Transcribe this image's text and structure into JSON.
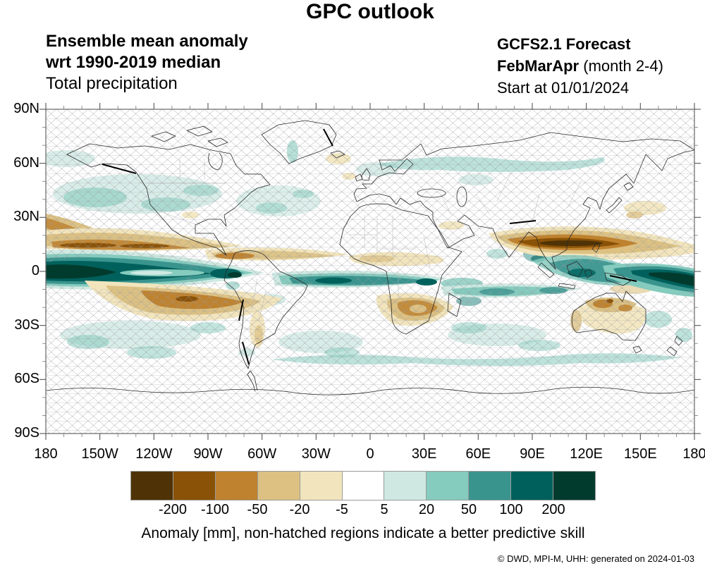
{
  "title": "GPC outlook",
  "subtitle_left": {
    "line1": "Ensemble mean anomaly",
    "line2": "wrt 1990-2019 median",
    "line3": "Total precipitation"
  },
  "subtitle_right": {
    "model": "GCFS2.1 Forecast",
    "season_bold": "FebMarApr",
    "season_rest": " (month 2-4)",
    "start": "Start at 01/01/2024"
  },
  "map": {
    "lat_labels": [
      "90N",
      "60N",
      "30N",
      "0",
      "30S",
      "60S",
      "90S"
    ],
    "lon_labels": [
      "180",
      "150W",
      "120W",
      "90W",
      "60W",
      "30W",
      "0",
      "30E",
      "60E",
      "90E",
      "120E",
      "150E",
      "180"
    ]
  },
  "colorbar": {
    "colors": [
      "#4f3306",
      "#8a5206",
      "#bf822e",
      "#dcc183",
      "#f2e5bd",
      "#ffffff",
      "#cfe9e2",
      "#85cbbe",
      "#3a948e",
      "#00615c",
      "#013b2e"
    ],
    "ticks": [
      "-200",
      "-100",
      "-50",
      "-20",
      "-5",
      "5",
      "20",
      "50",
      "100",
      "200"
    ]
  },
  "caption": "Anomaly [mm], non-hatched regions indicate a better predictive skill",
  "credit": "©  DWD, MPI-M, UHH: generated on 2024-01-03",
  "chart_data": {
    "type": "heatmap",
    "title": "GPC outlook",
    "variable": "Total precipitation, ensemble mean anomaly wrt 1990-2019 median",
    "model": "GCFS2.1 Forecast, FebMarApr (month 2-4), start 01/01/2024",
    "units": "mm",
    "projection": "equirectangular world map",
    "xlim": [
      -180,
      180
    ],
    "ylim": [
      -90,
      90
    ],
    "x_tick_labels": [
      "180",
      "150W",
      "120W",
      "90W",
      "60W",
      "30W",
      "0",
      "30E",
      "60E",
      "90E",
      "120E",
      "150E",
      "180"
    ],
    "y_tick_labels": [
      "90N",
      "60N",
      "30N",
      "0",
      "30S",
      "60S",
      "90S"
    ],
    "levels": [
      -200,
      -100,
      -50,
      -20,
      -5,
      5,
      20,
      50,
      100,
      200
    ],
    "palette": [
      "#4f3306",
      "#8a5206",
      "#bf822e",
      "#dcc183",
      "#f2e5bd",
      "#ffffff",
      "#cfe9e2",
      "#85cbbe",
      "#3a948e",
      "#00615c",
      "#013b2e"
    ],
    "hatching_meaning": "non-hatched regions indicate a better predictive skill",
    "notable_anomalies": [
      {
        "region": "central-eastern equatorial Pacific (El Nino band)",
        "value_mm": "+100 to >+200"
      },
      {
        "region": "far western equatorial Pacific 150E-180",
        "value_mm": "+100 to >+200"
      },
      {
        "region": "tropical Pacific ~5-10N (ITCZ north flank)",
        "value_mm": "-50 to -200"
      },
      {
        "region": "western Pacific north of New Guinea ~5-15N",
        "value_mm": "-100 to -200"
      },
      {
        "region": "SW tropical Pacific ~10-20S",
        "value_mm": "-50 to -100"
      },
      {
        "region": "equatorial Atlantic / Gulf of Guinea",
        "value_mm": "+50 to +100"
      },
      {
        "region": "Maritime Continent / Indonesia",
        "value_mm": "+20 to +100"
      },
      {
        "region": "southern Africa interior",
        "value_mm": "-20 to -50"
      },
      {
        "region": "northern Australia",
        "value_mm": "-20 to -50"
      },
      {
        "region": "southern Indian Ocean band 10-20S",
        "value_mm": "+5 to +50"
      },
      {
        "region": "mid and high latitudes",
        "value_mm": "-5 to +20, mostly hatched"
      }
    ]
  }
}
